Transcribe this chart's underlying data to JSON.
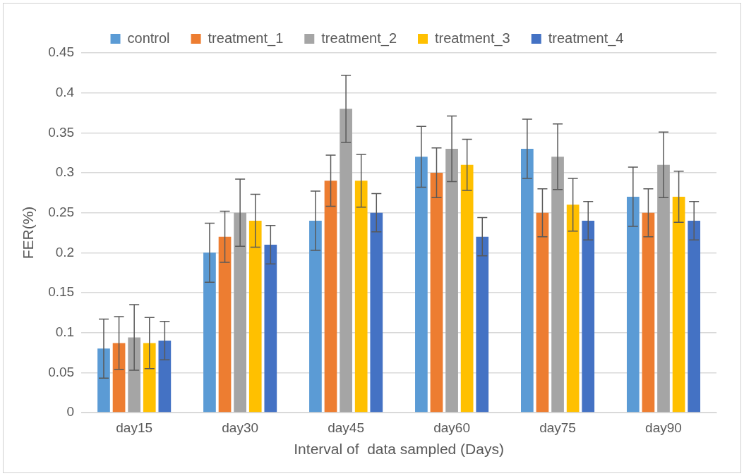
{
  "chart_data": {
    "type": "bar",
    "xlabel": "Interval of  data sampled (Days)",
    "ylabel": "FER(%)",
    "categories": [
      "day15",
      "day30",
      "day45",
      "day60",
      "day75",
      "day90"
    ],
    "series": [
      {
        "name": "control",
        "color": "#5b9bd5",
        "values": [
          0.08,
          0.2,
          0.24,
          0.32,
          0.33,
          0.27
        ],
        "errors": [
          0.037,
          0.037,
          0.037,
          0.038,
          0.037,
          0.037
        ]
      },
      {
        "name": "treatment_1",
        "color": "#ed7d31",
        "values": [
          0.087,
          0.22,
          0.29,
          0.3,
          0.25,
          0.25
        ],
        "errors": [
          0.033,
          0.032,
          0.032,
          0.031,
          0.03,
          0.03
        ]
      },
      {
        "name": "treatment_2",
        "color": "#a5a5a5",
        "values": [
          0.094,
          0.25,
          0.38,
          0.33,
          0.32,
          0.31
        ],
        "errors": [
          0.041,
          0.042,
          0.042,
          0.041,
          0.041,
          0.041
        ]
      },
      {
        "name": "treatment_3",
        "color": "#ffc000",
        "values": [
          0.087,
          0.24,
          0.29,
          0.31,
          0.26,
          0.27
        ],
        "errors": [
          0.032,
          0.033,
          0.033,
          0.032,
          0.033,
          0.032
        ]
      },
      {
        "name": "treatment_4",
        "color": "#4472c4",
        "values": [
          0.09,
          0.21,
          0.25,
          0.22,
          0.24,
          0.24
        ],
        "errors": [
          0.024,
          0.024,
          0.024,
          0.024,
          0.024,
          0.024
        ]
      }
    ],
    "ylim": [
      0,
      0.45
    ],
    "yticks": [
      0,
      0.05,
      0.1,
      0.15,
      0.2,
      0.25,
      0.3,
      0.35,
      0.4,
      0.45
    ],
    "grid": "y",
    "legend": "top"
  }
}
